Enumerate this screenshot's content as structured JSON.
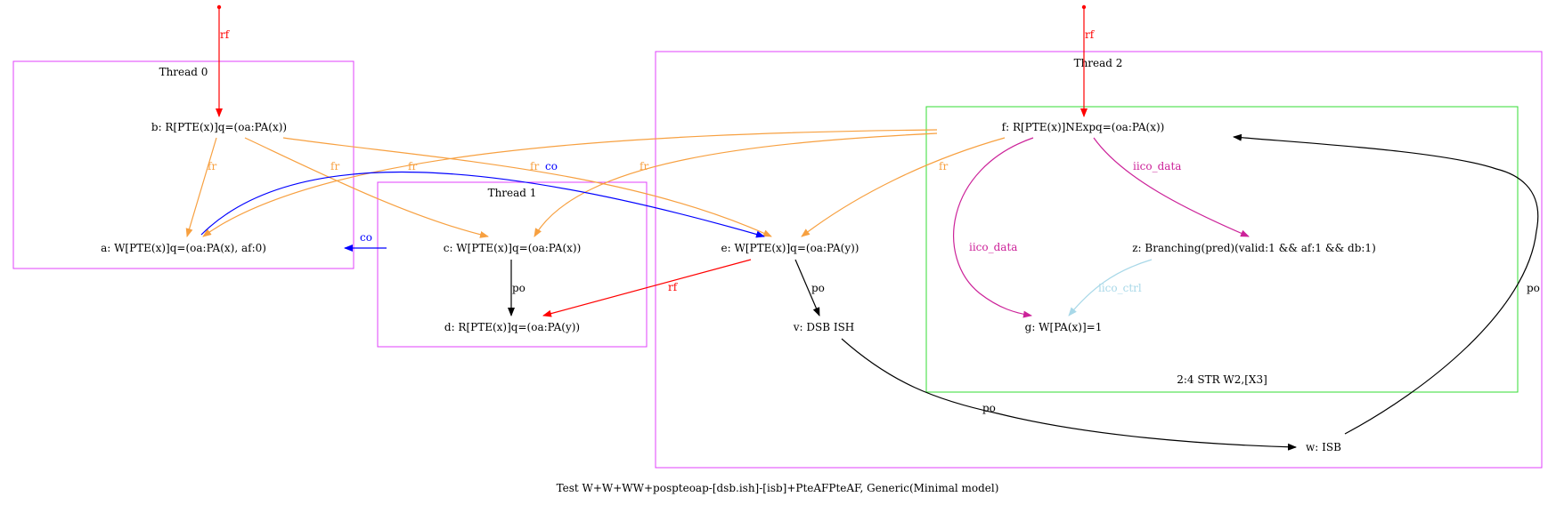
{
  "caption": "Test W+W+WW+pospteoap-[dsb.ish]-[isb]+PteAFPteAF, Generic(Minimal model)",
  "clusters": {
    "thread0": "Thread 0",
    "thread1": "Thread 1",
    "thread2": "Thread 2",
    "instr": "2:4 STR W2,[X3]"
  },
  "nodes": {
    "a": "a: W[PTE(x)]q=(oa:PA(x), af:0)",
    "b": "b: R[PTE(x)]q=(oa:PA(x))",
    "c": "c: W[PTE(x)]q=(oa:PA(x))",
    "d": "d: R[PTE(x)]q=(oa:PA(y))",
    "e": "e: W[PTE(x)]q=(oa:PA(y))",
    "v": "v: DSB ISH",
    "w": "w: ISB",
    "f": "f: R[PTE(x)]NExpq=(oa:PA(x))",
    "z": "z: Branching(pred)(valid:1 && af:1 && db:1)",
    "g": "g: W[PA(x)]=1"
  },
  "edge_labels": {
    "rf": "rf",
    "fr": "fr",
    "co": "co",
    "po": "po",
    "iico_data": "iico_data",
    "iico_ctrl": "iico_ctrl"
  },
  "colors": {
    "cluster_thread": "#e040fb",
    "cluster_instr": "#33dd33",
    "rf": "#ff0000",
    "fr": "#f7a040",
    "co": "#0000ff",
    "po": "#000000",
    "iico_data": "#cc2299",
    "iico_ctrl": "#a8d8e8"
  }
}
